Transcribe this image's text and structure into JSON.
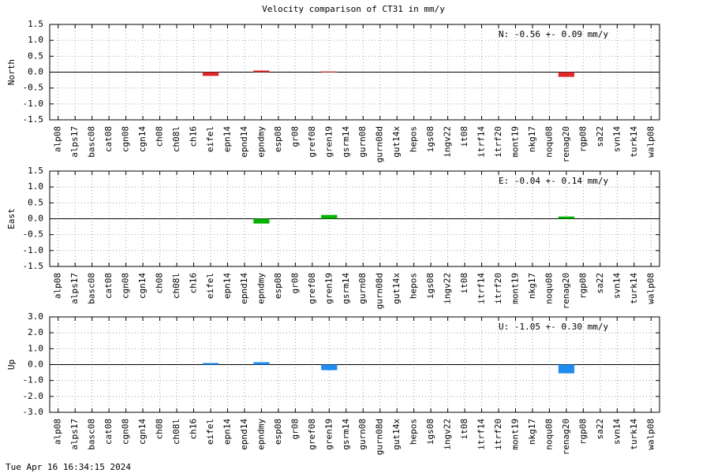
{
  "title": "Velocity comparison of CT31 in mm/y",
  "footer": "Tue Apr 16 16:34:15 2024",
  "chart_data": [
    {
      "type": "bar",
      "ylabel": "North",
      "annotation": "N:  -0.56 +-  0.09 mm/y",
      "color": "#e02828",
      "grid": true,
      "categories": [
        "alp08",
        "alps17",
        "basc08",
        "cat08",
        "cgn08",
        "cgn14",
        "ch08",
        "ch08l",
        "ch16",
        "eifel",
        "epn14",
        "epnd14",
        "epndmy",
        "esp08",
        "gr08",
        "gref08",
        "gren19",
        "gsrm14",
        "gurn08",
        "gurn08d",
        "gut14x",
        "hepos",
        "igs08",
        "ingv22",
        "it08",
        "itrf14",
        "itrf20",
        "mont19",
        "nkg17",
        "noqu08",
        "renag20",
        "rgp08",
        "sa22",
        "svn14",
        "turk14",
        "walp08"
      ],
      "values": [
        null,
        null,
        null,
        null,
        null,
        null,
        null,
        null,
        null,
        -0.12,
        null,
        null,
        0.05,
        null,
        null,
        null,
        0.02,
        null,
        null,
        null,
        null,
        null,
        null,
        null,
        null,
        null,
        null,
        null,
        null,
        null,
        -0.15,
        null,
        null,
        null,
        null,
        null
      ],
      "ylim": [
        -1.5,
        1.5
      ],
      "yticks": [
        {
          "value": -1.5,
          "label": "-1.5"
        },
        {
          "value": -1,
          "label": "-1.0"
        },
        {
          "value": -0.5,
          "label": "-0.5"
        },
        {
          "value": 0,
          "label": "0.0"
        },
        0.5,
        {
          "value": 1,
          "label": "1.0"
        },
        1.5
      ]
    },
    {
      "type": "bar",
      "ylabel": "East",
      "annotation": "E:  -0.04 +-  0.14 mm/y",
      "color": "#00b400",
      "grid": true,
      "categories": [
        "alp08",
        "alps17",
        "basc08",
        "cat08",
        "cgn08",
        "cgn14",
        "ch08",
        "ch08l",
        "ch16",
        "eifel",
        "epn14",
        "epnd14",
        "epndmy",
        "esp08",
        "gr08",
        "gref08",
        "gren19",
        "gsrm14",
        "gurn08",
        "gurn08d",
        "gut14x",
        "hepos",
        "igs08",
        "ingv22",
        "it08",
        "itrf14",
        "itrf20",
        "mont19",
        "nkg17",
        "noqu08",
        "renag20",
        "rgp08",
        "sa22",
        "svn14",
        "turk14",
        "walp08"
      ],
      "values": [
        null,
        null,
        null,
        null,
        null,
        null,
        null,
        null,
        null,
        null,
        null,
        null,
        -0.15,
        null,
        null,
        null,
        0.12,
        null,
        null,
        null,
        null,
        null,
        null,
        null,
        null,
        null,
        null,
        null,
        null,
        null,
        0.07,
        null,
        null,
        null,
        null,
        null
      ],
      "ylim": [
        -1.5,
        1.5
      ],
      "yticks": [
        {
          "value": -1.5,
          "label": "-1.5"
        },
        {
          "value": -1,
          "label": "-1.0"
        },
        {
          "value": -0.5,
          "label": "-0.5"
        },
        {
          "value": 0,
          "label": "0.0"
        },
        0.5,
        {
          "value": 1,
          "label": "1.0"
        },
        1.5
      ]
    },
    {
      "type": "bar",
      "ylabel": "Up",
      "annotation": "U:  -1.05 +-  0.30 mm/y",
      "color": "#1e8cf0",
      "grid": true,
      "categories": [
        "alp08",
        "alps17",
        "basc08",
        "cat08",
        "cgn08",
        "cgn14",
        "ch08",
        "ch08l",
        "ch16",
        "eifel",
        "epn14",
        "epnd14",
        "epndmy",
        "esp08",
        "gr08",
        "gref08",
        "gren19",
        "gsrm14",
        "gurn08",
        "gurn08d",
        "gut14x",
        "hepos",
        "igs08",
        "ingv22",
        "it08",
        "itrf14",
        "itrf20",
        "mont19",
        "nkg17",
        "noqu08",
        "renag20",
        "rgp08",
        "sa22",
        "svn14",
        "turk14",
        "walp08"
      ],
      "values": [
        null,
        null,
        null,
        null,
        null,
        null,
        null,
        null,
        null,
        0.1,
        null,
        null,
        0.15,
        null,
        null,
        null,
        -0.35,
        null,
        null,
        null,
        null,
        null,
        null,
        null,
        null,
        null,
        null,
        null,
        null,
        null,
        -0.55,
        null,
        null,
        null,
        null,
        null
      ],
      "ylim": [
        -3,
        3
      ],
      "yticks": [
        {
          "value": -3,
          "label": "-3.0"
        },
        {
          "value": -2,
          "label": "-2.0"
        },
        {
          "value": -1,
          "label": "-1.0"
        },
        {
          "value": 0,
          "label": "0.0"
        },
        {
          "value": 1,
          "label": "1.0"
        },
        {
          "value": 2,
          "label": "2.0"
        },
        {
          "value": 3,
          "label": "3.0"
        }
      ]
    }
  ]
}
